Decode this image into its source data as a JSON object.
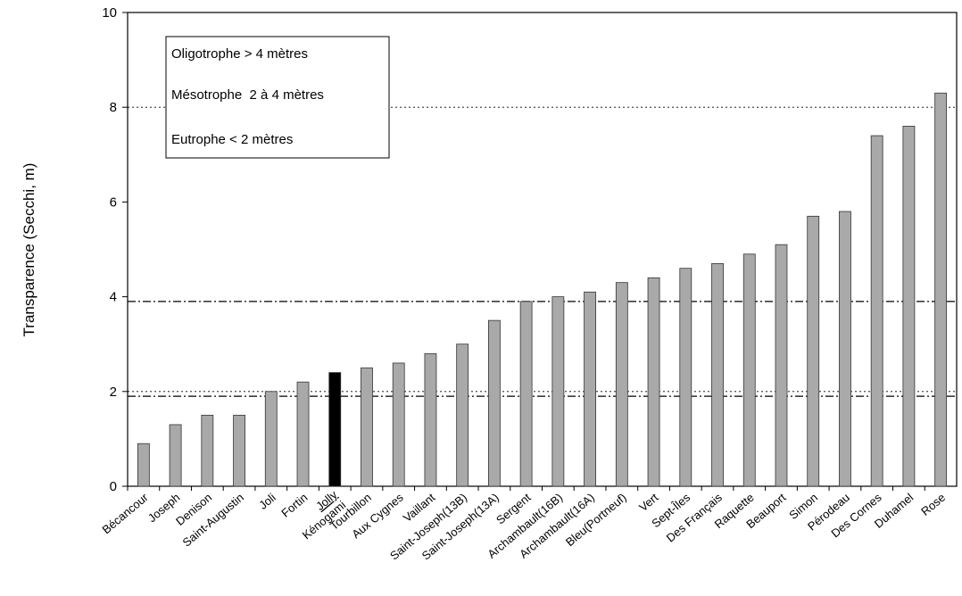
{
  "chart_data": {
    "type": "bar",
    "ylabel": "Transparence (Secchi, m)",
    "ylim": [
      0,
      10
    ],
    "yticks": [
      0,
      2,
      4,
      6,
      8,
      10
    ],
    "categories": [
      "Bécancour",
      "Joseph",
      "Denison",
      "Saint-Augustin",
      "Joli",
      "Fortin",
      "Jolly Kénogami",
      "Tourbillon",
      "Aux Cygnes",
      "Vaillant",
      "Saint-Joseph(13B)",
      "Saint-Joseph(13A)",
      "Sergent",
      "Archambault(16B)",
      "Archambault(16A)",
      "Bleu(Portneuf)",
      "Vert",
      "Sept-Îles",
      "Des Français",
      "Raquette",
      "Beauport",
      "Simon",
      "Pérodeau",
      "Des Cornes",
      "Duhamel",
      "Rose"
    ],
    "category_labels": [
      {
        "lines": [
          "Bécancour"
        ]
      },
      {
        "lines": [
          "Joseph"
        ]
      },
      {
        "lines": [
          "Denison"
        ]
      },
      {
        "lines": [
          "Saint-Augustin"
        ]
      },
      {
        "lines": [
          "Joli"
        ]
      },
      {
        "lines": [
          "Fortin"
        ]
      },
      {
        "lines": [
          "Jolly",
          "Kénogami"
        ],
        "underline_first": true
      },
      {
        "lines": [
          "Tourbillon"
        ]
      },
      {
        "lines": [
          "Aux Cygnes"
        ]
      },
      {
        "lines": [
          "Vaillant"
        ]
      },
      {
        "lines": [
          "Saint-Joseph(13B)"
        ]
      },
      {
        "lines": [
          "Saint-Joseph(13A)"
        ]
      },
      {
        "lines": [
          "Sergent"
        ]
      },
      {
        "lines": [
          "Archambault(16B)"
        ]
      },
      {
        "lines": [
          "Archambault(16A)"
        ]
      },
      {
        "lines": [
          "Bleu(Portneuf)"
        ]
      },
      {
        "lines": [
          "Vert"
        ]
      },
      {
        "lines": [
          "Sept-Îles"
        ]
      },
      {
        "lines": [
          "Des Français"
        ]
      },
      {
        "lines": [
          "Raquette"
        ]
      },
      {
        "lines": [
          "Beauport"
        ]
      },
      {
        "lines": [
          "Simon"
        ]
      },
      {
        "lines": [
          "Pérodeau"
        ]
      },
      {
        "lines": [
          "Des Cornes"
        ]
      },
      {
        "lines": [
          "Duhamel"
        ]
      },
      {
        "lines": [
          "Rose"
        ]
      }
    ],
    "values": [
      0.9,
      1.3,
      1.5,
      1.5,
      2.0,
      2.2,
      2.4,
      2.5,
      2.6,
      2.8,
      3.0,
      3.5,
      3.9,
      4.0,
      4.1,
      4.3,
      4.4,
      4.6,
      4.7,
      4.9,
      5.1,
      5.7,
      5.8,
      7.4,
      7.6,
      8.3
    ],
    "highlight_index": 6,
    "reference_lines": [
      {
        "value": 1.9,
        "style": "dash-dot"
      },
      {
        "value": 2.0,
        "style": "dotted"
      },
      {
        "value": 3.9,
        "style": "dash-dot"
      },
      {
        "value": 8.0,
        "style": "dotted"
      }
    ],
    "legend": {
      "lines": [
        "Oligotrophe > 4 mètres",
        "Mésotrophe  2 à 4 mètres",
        "Eutrophe < 2 mètres"
      ],
      "placement": "top-left"
    },
    "colors": {
      "bar": "#a9a9a9",
      "bar_highlight": "#000000",
      "bar_stroke": "#333333"
    }
  }
}
